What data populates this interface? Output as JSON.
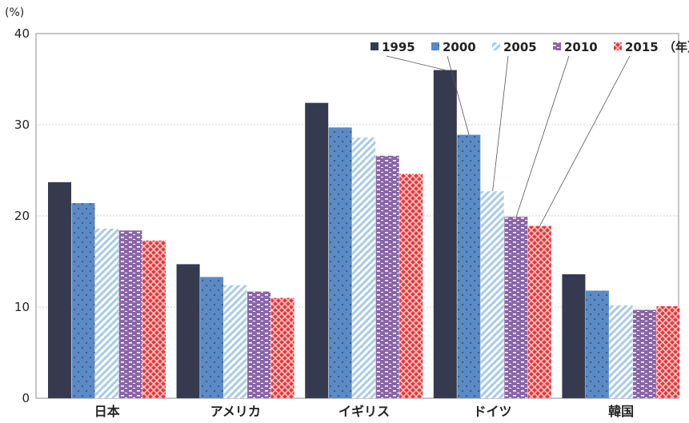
{
  "chart_data": {
    "type": "bar",
    "title": "",
    "xlabel": "",
    "ylabel": "",
    "y_unit": "(%)",
    "ylim": [
      0,
      40
    ],
    "yticks": [
      "0",
      "10",
      "20",
      "30",
      "40"
    ],
    "grid": true,
    "legend_position": "top-right",
    "legend_suffix": "（年）",
    "categories": [
      "日本",
      "アメリカ",
      "イギリス",
      "ドイツ",
      "韓国"
    ],
    "series": [
      {
        "name": "1995",
        "color": "#363a4f",
        "pattern": "solid",
        "values": [
          23.7,
          14.7,
          32.4,
          36.0,
          13.6
        ]
      },
      {
        "name": "2000",
        "color": "#5b8ac4",
        "pattern": "dots",
        "values": [
          21.4,
          13.3,
          29.7,
          28.9,
          11.8
        ]
      },
      {
        "name": "2005",
        "color": "#a9cbe6",
        "pattern": "diagonal",
        "values": [
          18.6,
          12.4,
          28.6,
          22.7,
          10.2
        ]
      },
      {
        "name": "2010",
        "color": "#8a65a8",
        "pattern": "dashes",
        "values": [
          18.4,
          11.7,
          26.6,
          19.9,
          9.7
        ]
      },
      {
        "name": "2015",
        "color": "#e8393b",
        "pattern": "cross",
        "values": [
          17.3,
          11.0,
          24.6,
          18.9,
          10.1
        ]
      }
    ]
  }
}
